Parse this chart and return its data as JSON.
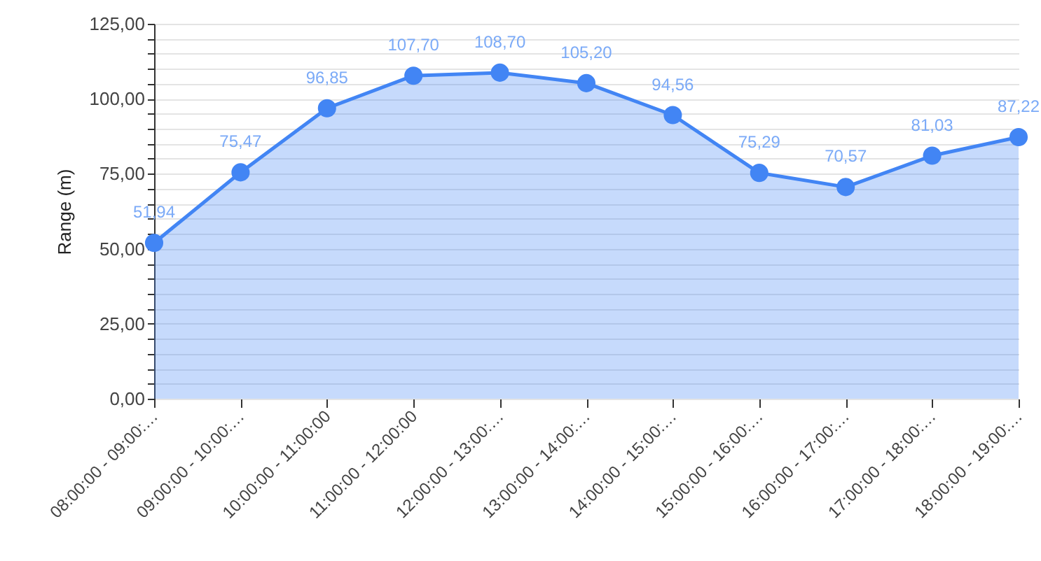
{
  "chart_data": {
    "type": "area",
    "ylabel": "Range (m)",
    "categories": [
      "08:00:00 - 09:00:…",
      "09:00:00 - 10:00:…",
      "10:00:00 - 11:00:00",
      "11:00:00 - 12:00:00",
      "12:00:00 - 13:00:…",
      "13:00:00 - 14:00:…",
      "14:00:00 - 15:00:…",
      "15:00:00 - 16:00:…",
      "16:00:00 - 17:00:…",
      "17:00:00 - 18:00:…",
      "18:00:00 - 19:00:…"
    ],
    "series": [
      {
        "color": "#4285f4",
        "values": [
          51.94,
          75.47,
          96.85,
          107.7,
          108.7,
          105.2,
          94.56,
          75.29,
          70.57,
          81.03,
          87.22
        ],
        "value_labels": [
          "51,94",
          "75,47",
          "96,85",
          "107,70",
          "108,70",
          "105,20",
          "94,56",
          "75,29",
          "70,57",
          "81,03",
          "87,22"
        ]
      }
    ],
    "ylim": [
      0,
      125
    ],
    "yticks": [
      {
        "value": 0,
        "label": "0,00"
      },
      {
        "value": 5,
        "label": null
      },
      {
        "value": 10,
        "label": null
      },
      {
        "value": 15,
        "label": null
      },
      {
        "value": 20,
        "label": null
      },
      {
        "value": 25,
        "label": "25,00"
      },
      {
        "value": 30,
        "label": null
      },
      {
        "value": 35,
        "label": null
      },
      {
        "value": 40,
        "label": null
      },
      {
        "value": 45,
        "label": null
      },
      {
        "value": 50,
        "label": "50,00"
      },
      {
        "value": 55,
        "label": null
      },
      {
        "value": 60,
        "label": null
      },
      {
        "value": 65,
        "label": null
      },
      {
        "value": 70,
        "label": null
      },
      {
        "value": 75,
        "label": "75,00"
      },
      {
        "value": 80,
        "label": null
      },
      {
        "value": 85,
        "label": null
      },
      {
        "value": 90,
        "label": null
      },
      {
        "value": 95,
        "label": null
      },
      {
        "value": 100,
        "label": "100,00"
      },
      {
        "value": 105,
        "label": null
      },
      {
        "value": 110,
        "label": null
      },
      {
        "value": 115,
        "label": null
      },
      {
        "value": 120,
        "label": null
      },
      {
        "value": 125,
        "label": "125,00"
      }
    ],
    "grid": "y",
    "marker": "circle"
  }
}
